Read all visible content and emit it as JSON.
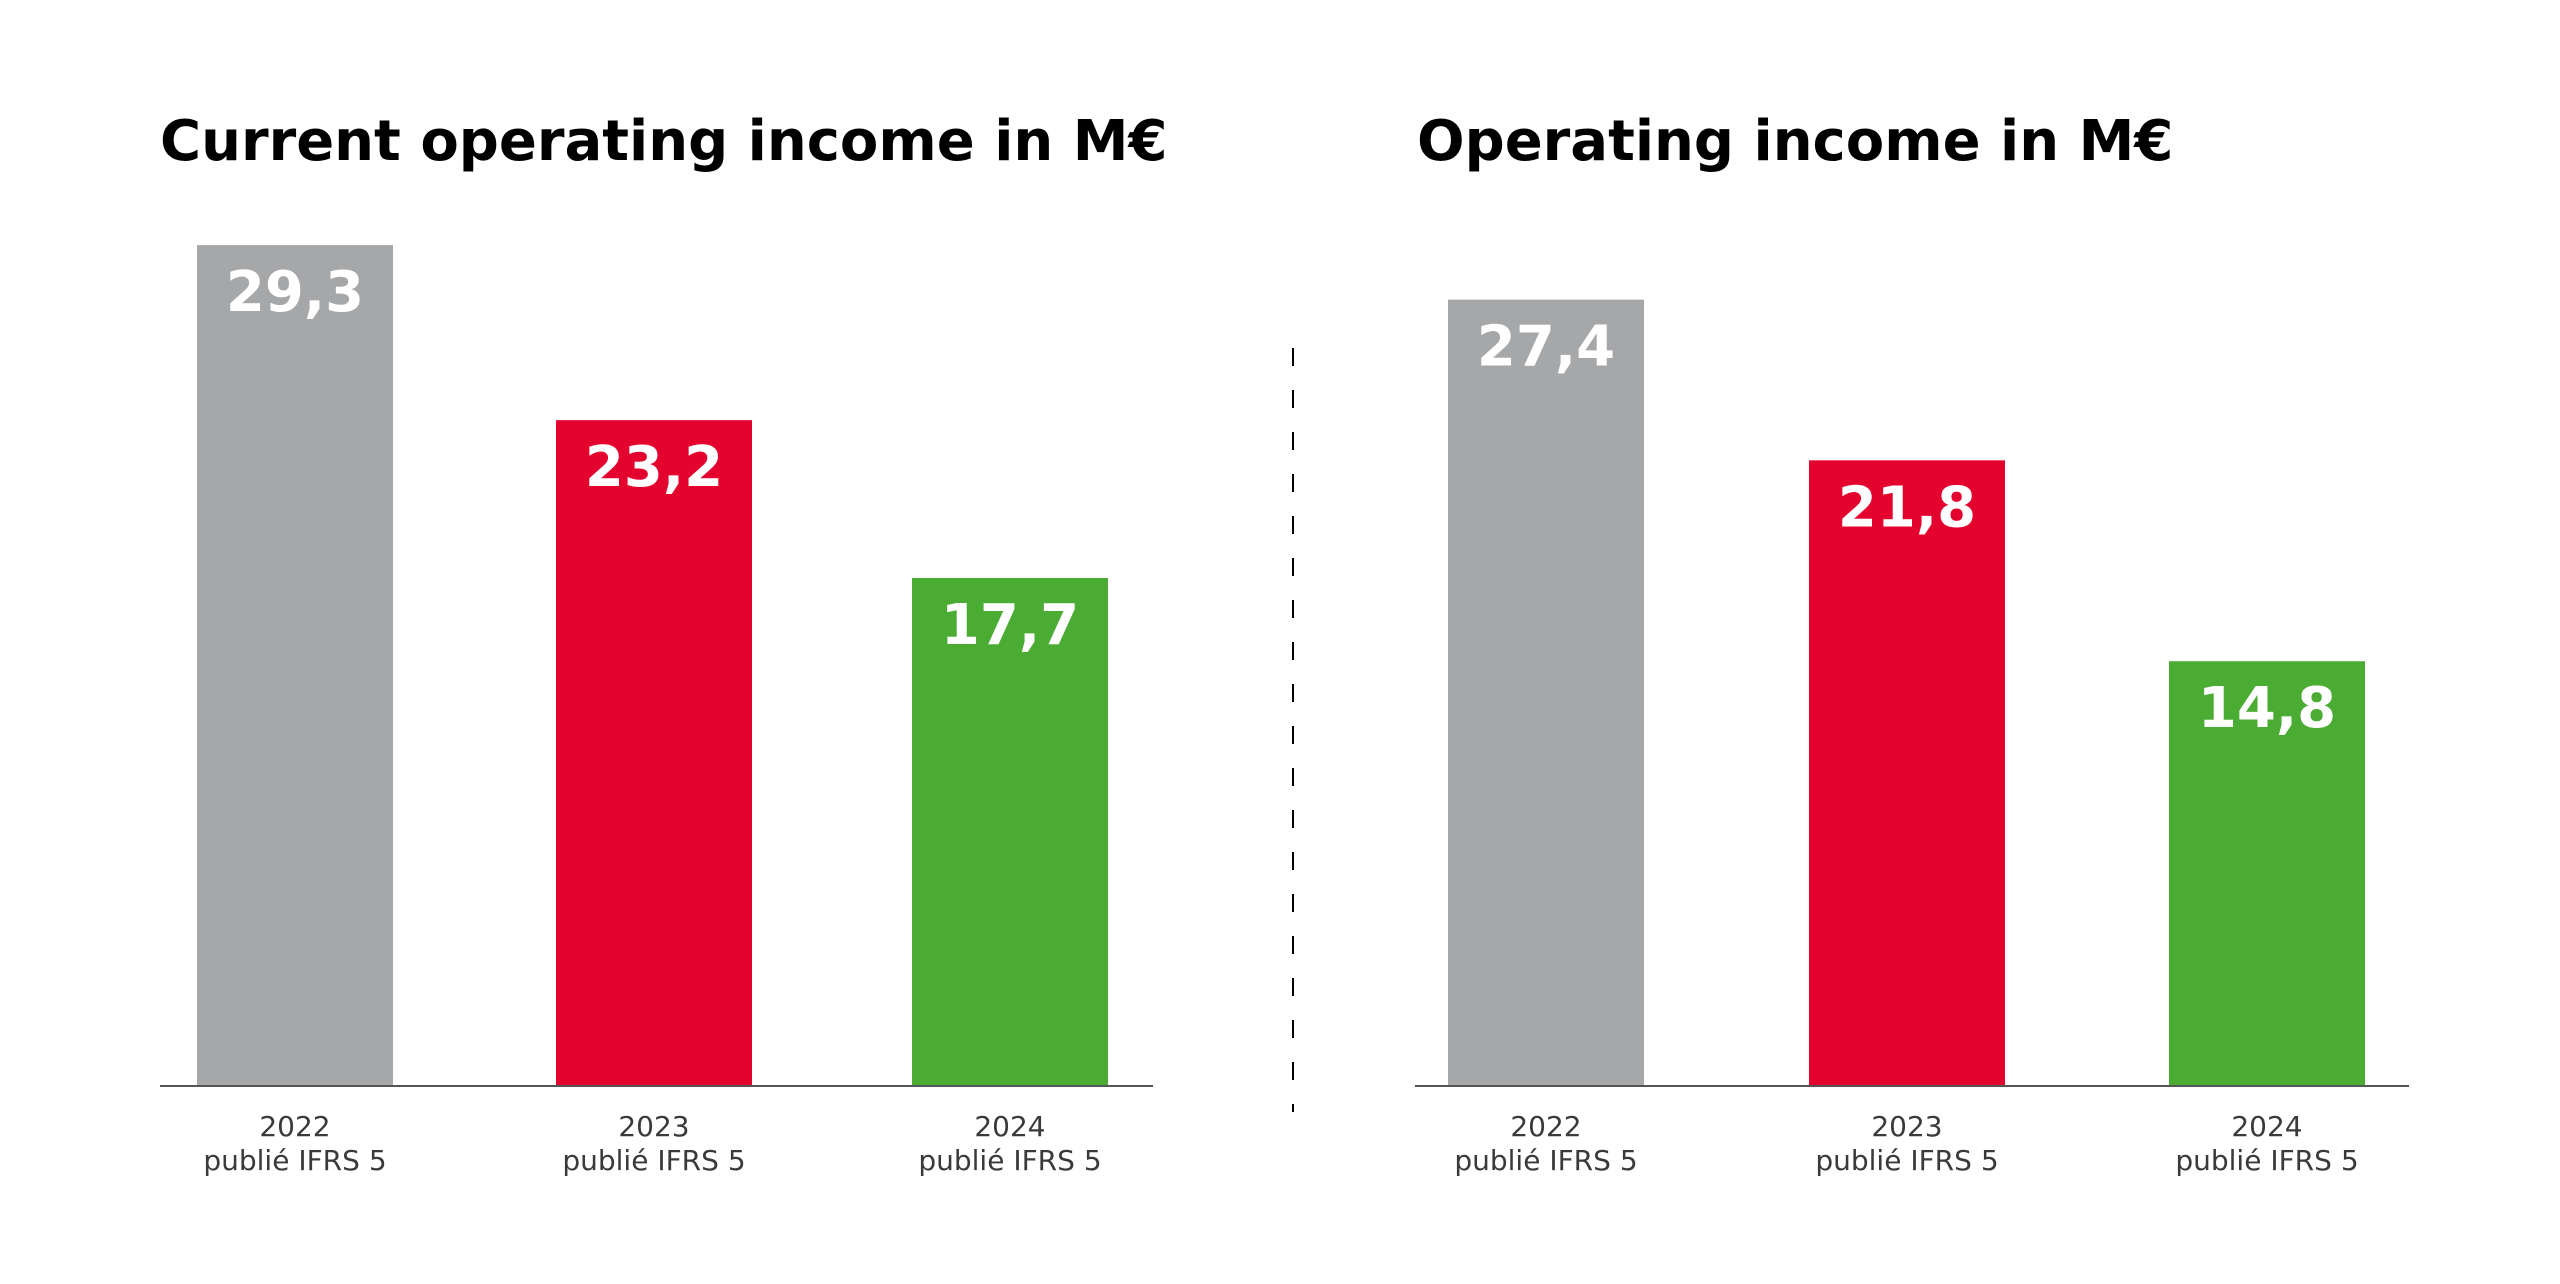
{
  "chart_data": [
    {
      "type": "bar",
      "title": "Current operating income in M€",
      "categories": [
        [
          "2022",
          "publié IFRS 5"
        ],
        [
          "2023",
          "publié IFRS 5"
        ],
        [
          "2024",
          "publié IFRS 5"
        ]
      ],
      "values": [
        29.3,
        23.2,
        17.7
      ],
      "value_labels": [
        "29,3",
        "23,2",
        "17,7"
      ],
      "colors": [
        "#a6a7a9",
        "#e4032e",
        "#4aac33"
      ],
      "xlabel": "",
      "ylabel": "",
      "ylim": [
        0,
        30
      ],
      "grid": false
    },
    {
      "type": "bar",
      "title": "Operating income in M€",
      "categories": [
        [
          "2022",
          "publié IFRS 5"
        ],
        [
          "2023",
          "publié IFRS 5"
        ],
        [
          "2024",
          "publié IFRS 5"
        ]
      ],
      "values": [
        27.4,
        21.8,
        14.8
      ],
      "value_labels": [
        "27,4",
        "21,8",
        "14,8"
      ],
      "colors": [
        "#a6a7a9",
        "#e4032e",
        "#4aac33"
      ],
      "xlabel": "",
      "ylabel": "",
      "ylim": [
        0,
        30
      ],
      "grid": false
    }
  ]
}
